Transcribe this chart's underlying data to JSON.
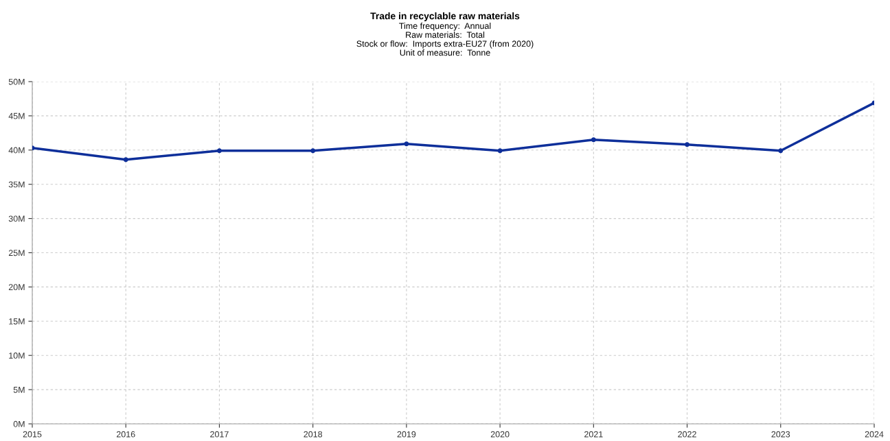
{
  "chart_data": {
    "type": "line",
    "title": "Trade in recyclable raw materials",
    "subtitle": "Time frequency:  Annual\nRaw materials:  Total\nStock or flow:  Imports extra-EU27 (from 2020)\nUnit of measure:  Tonne",
    "x": [
      2015,
      2016,
      2017,
      2018,
      2019,
      2020,
      2021,
      2022,
      2023,
      2024
    ],
    "series": [
      {
        "color": "#0e2f9a",
        "values": [
          40300000,
          38600000,
          39900000,
          39900000,
          40900000,
          39900000,
          41500000,
          40800000,
          39900000,
          46900000
        ]
      }
    ],
    "xlim": [
      2015,
      2024
    ],
    "xticks": [
      2015,
      2016,
      2017,
      2018,
      2019,
      2020,
      2021,
      2022,
      2023,
      2024
    ],
    "ylim": [
      0,
      50000000
    ],
    "yticks": [
      {
        "value": 0,
        "label": "0M"
      },
      {
        "value": 5000000,
        "label": "5M"
      },
      {
        "value": 10000000,
        "label": "10M"
      },
      {
        "value": 15000000,
        "label": "15M"
      },
      {
        "value": 20000000,
        "label": "20M"
      },
      {
        "value": 25000000,
        "label": "25M"
      },
      {
        "value": 30000000,
        "label": "30M"
      },
      {
        "value": 35000000,
        "label": "35M"
      },
      {
        "value": 40000000,
        "label": "40M"
      },
      {
        "value": 45000000,
        "label": "45M"
      },
      {
        "value": 50000000,
        "label": "50M"
      }
    ],
    "grid": true,
    "marker": "circle",
    "line_style": "solid",
    "legend": false
  }
}
